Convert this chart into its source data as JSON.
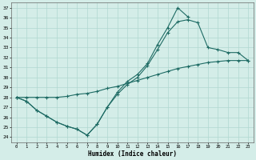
{
  "xlabel": "Humidex (Indice chaleur)",
  "bg_color": "#d4ede8",
  "line_color": "#1e6b64",
  "grid_color": "#b0d8d0",
  "ylim": [
    23.5,
    37.5
  ],
  "xlim": [
    -0.5,
    23.5
  ],
  "yticks": [
    24,
    25,
    26,
    27,
    28,
    29,
    30,
    31,
    32,
    33,
    34,
    35,
    36,
    37
  ],
  "xticks": [
    0,
    1,
    2,
    3,
    4,
    5,
    6,
    7,
    8,
    9,
    10,
    11,
    12,
    13,
    14,
    15,
    16,
    17,
    18,
    19,
    20,
    21,
    22,
    23
  ],
  "line1_x": [
    0,
    1,
    2,
    3,
    4,
    5,
    6,
    7,
    8,
    9,
    10,
    11,
    12,
    13,
    14,
    15,
    16,
    17,
    18,
    19,
    20,
    21,
    22,
    23
  ],
  "line1_y": [
    28.0,
    28.0,
    28.0,
    28.0,
    28.0,
    28.1,
    28.3,
    28.4,
    28.6,
    28.9,
    29.1,
    29.4,
    29.7,
    30.0,
    30.3,
    30.6,
    30.9,
    31.1,
    31.3,
    31.5,
    31.6,
    31.7,
    31.7,
    31.7
  ],
  "line2_x": [
    0,
    1,
    2,
    3,
    4,
    5,
    6,
    7,
    8,
    9,
    10,
    11,
    12,
    13,
    14,
    15,
    16,
    17,
    18,
    19,
    20,
    21,
    22,
    23
  ],
  "line2_y": [
    28.0,
    27.6,
    26.7,
    26.1,
    25.5,
    25.1,
    24.8,
    24.2,
    25.3,
    27.0,
    28.5,
    29.6,
    30.3,
    31.4,
    33.3,
    35.0,
    37.0,
    36.1,
    null,
    null,
    null,
    null,
    null,
    null
  ],
  "line3_x": [
    0,
    1,
    2,
    3,
    4,
    5,
    6,
    7,
    8,
    9,
    10,
    11,
    12,
    13,
    14,
    15,
    16,
    17,
    18,
    19,
    20,
    21,
    22,
    23
  ],
  "line3_y": [
    28.0,
    27.6,
    26.7,
    26.1,
    25.5,
    25.1,
    24.8,
    24.2,
    25.3,
    27.0,
    28.3,
    29.3,
    30.0,
    31.2,
    32.8,
    34.5,
    35.6,
    35.8,
    35.5,
    33.0,
    32.8,
    32.5,
    32.5,
    31.7
  ]
}
